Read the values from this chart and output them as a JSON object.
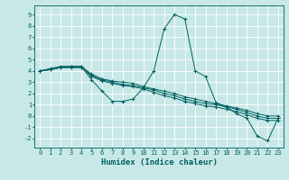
{
  "bg_color": "#c8e8e8",
  "grid_color": "#ffffff",
  "line_color": "#006060",
  "xlabel": "Humidex (Indice chaleur)",
  "xlim": [
    -0.5,
    23.5
  ],
  "ylim": [
    -2.8,
    9.8
  ],
  "xticks": [
    0,
    1,
    2,
    3,
    4,
    5,
    6,
    7,
    8,
    9,
    10,
    11,
    12,
    13,
    14,
    15,
    16,
    17,
    18,
    19,
    20,
    21,
    22,
    23
  ],
  "yticks": [
    -2,
    -1,
    0,
    1,
    2,
    3,
    4,
    5,
    6,
    7,
    8,
    9
  ],
  "lines": [
    {
      "x": [
        0,
        1,
        2,
        3,
        4,
        5,
        6,
        7,
        8,
        9,
        10,
        11,
        12,
        13,
        14,
        15,
        16,
        17,
        18,
        19,
        20,
        21,
        22,
        23
      ],
      "y": [
        4.0,
        4.2,
        4.4,
        4.4,
        4.4,
        3.2,
        2.2,
        1.3,
        1.3,
        1.5,
        2.5,
        4.0,
        7.7,
        9.0,
        8.6,
        4.0,
        3.5,
        1.2,
        0.8,
        0.2,
        -0.2,
        -1.8,
        -2.2,
        -0.2
      ]
    },
    {
      "x": [
        0,
        1,
        2,
        3,
        4,
        5,
        6,
        7,
        8,
        9,
        10,
        11,
        12,
        13,
        14,
        15,
        16,
        17,
        18,
        19,
        20,
        21,
        22,
        23
      ],
      "y": [
        4.0,
        4.1,
        4.3,
        4.3,
        4.3,
        3.6,
        3.2,
        3.0,
        2.8,
        2.7,
        2.5,
        2.3,
        2.0,
        1.8,
        1.5,
        1.3,
        1.1,
        1.0,
        0.8,
        0.6,
        0.3,
        0.0,
        -0.2,
        -0.2
      ]
    },
    {
      "x": [
        0,
        1,
        2,
        3,
        4,
        5,
        6,
        7,
        8,
        9,
        10,
        11,
        12,
        13,
        14,
        15,
        16,
        17,
        18,
        19,
        20,
        21,
        22,
        23
      ],
      "y": [
        4.0,
        4.1,
        4.3,
        4.3,
        4.3,
        3.5,
        3.1,
        2.9,
        2.7,
        2.6,
        2.4,
        2.1,
        1.8,
        1.6,
        1.3,
        1.1,
        0.9,
        0.8,
        0.6,
        0.4,
        0.1,
        -0.2,
        -0.4,
        -0.4
      ]
    },
    {
      "x": [
        0,
        1,
        2,
        3,
        4,
        5,
        6,
        7,
        8,
        9,
        10,
        11,
        12,
        13,
        14,
        15,
        16,
        17,
        18,
        19,
        20,
        21,
        22,
        23
      ],
      "y": [
        4.0,
        4.1,
        4.3,
        4.4,
        4.4,
        3.7,
        3.3,
        3.1,
        3.0,
        2.9,
        2.6,
        2.4,
        2.2,
        2.0,
        1.7,
        1.5,
        1.3,
        1.1,
        0.9,
        0.7,
        0.5,
        0.2,
        0.0,
        0.0
      ]
    }
  ],
  "xlabel_fontsize": 6.5,
  "tick_fontsize": 5.0,
  "marker": "+",
  "linewidth": 0.7,
  "markersize": 2.5,
  "markeredgewidth": 0.7
}
